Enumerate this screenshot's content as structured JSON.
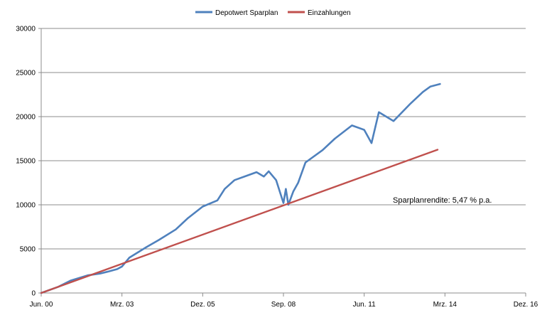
{
  "chart_data": {
    "type": "line",
    "title": "",
    "xlabel": "",
    "ylabel": "",
    "ylim": [
      0,
      30000
    ],
    "yticks": [
      0,
      5000,
      10000,
      15000,
      20000,
      25000,
      30000
    ],
    "ytick_labels": [
      "0",
      "5000",
      "10000",
      "15000",
      "20000",
      "25000",
      "30000"
    ],
    "xlim": [
      "2000-06",
      "2016-12"
    ],
    "xticks": [
      "2000-06",
      "2003-03",
      "2005-12",
      "2008-09",
      "2011-06",
      "2014-03",
      "2016-12"
    ],
    "xtick_labels": [
      "Jun. 00",
      "Mrz. 03",
      "Dez. 05",
      "Sep. 08",
      "Jun. 11",
      "Mrz. 14",
      "Dez. 16"
    ],
    "grid": "horizontal",
    "legend_position": "top",
    "annotation": "Sparplanrendite: 5,47 % p.a.",
    "series": [
      {
        "name": "Depotwert Sparplan",
        "color": "#4F81BD",
        "x": [
          "2000-06",
          "2001-01",
          "2001-06",
          "2002-01",
          "2002-06",
          "2002-09",
          "2003-01",
          "2003-03",
          "2003-06",
          "2004-01",
          "2004-06",
          "2005-01",
          "2005-06",
          "2005-12",
          "2006-06",
          "2006-09",
          "2007-01",
          "2007-06",
          "2007-10",
          "2008-01",
          "2008-03",
          "2008-06",
          "2008-09",
          "2008-10",
          "2008-11",
          "2009-01",
          "2009-03",
          "2009-06",
          "2010-01",
          "2010-06",
          "2011-01",
          "2011-06",
          "2011-09",
          "2011-12",
          "2012-06",
          "2013-01",
          "2013-06",
          "2013-09",
          "2014-01"
        ],
        "values": [
          0,
          700,
          1400,
          2000,
          2200,
          2400,
          2700,
          3000,
          4000,
          5200,
          6000,
          7200,
          8500,
          9800,
          10500,
          11800,
          12800,
          13300,
          13700,
          13200,
          13800,
          12800,
          10200,
          11800,
          10000,
          11500,
          12500,
          14800,
          16200,
          17500,
          19000,
          18500,
          17000,
          20500,
          19500,
          21500,
          22800,
          23400,
          23700
        ]
      },
      {
        "name": "Einzahlungen",
        "color": "#C0504D",
        "x": [
          "2000-06",
          "2013-12"
        ],
        "values": [
          0,
          16250
        ]
      }
    ]
  }
}
